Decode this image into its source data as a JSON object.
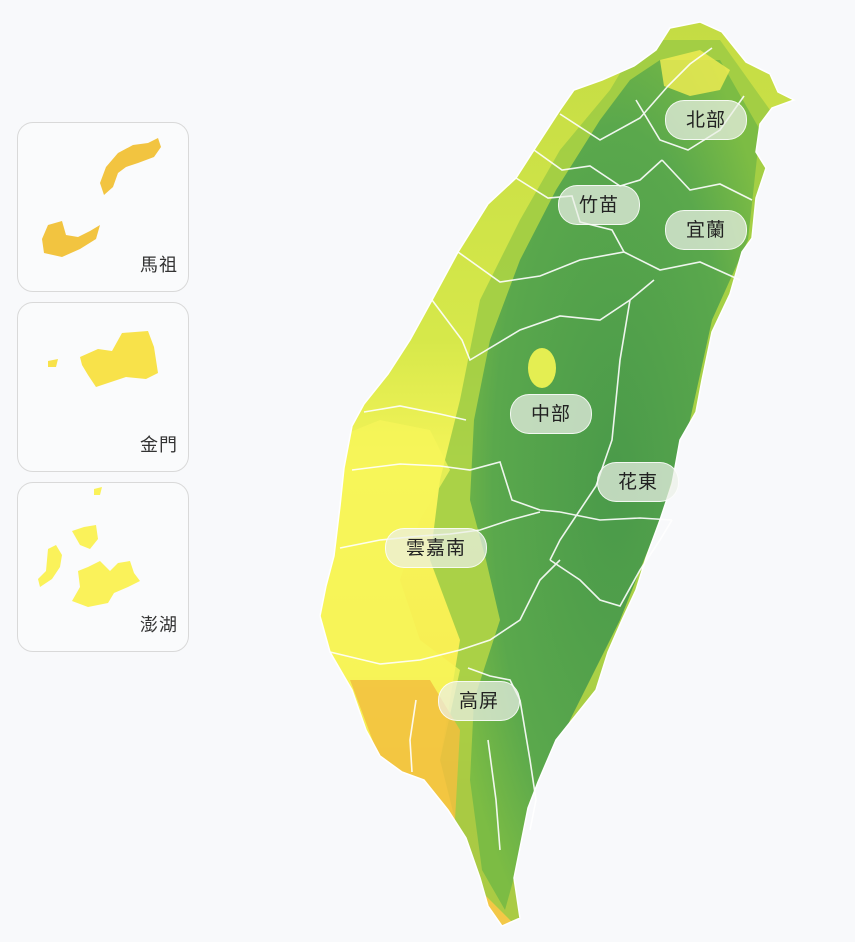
{
  "islands": {
    "matsu": {
      "label": "馬祖",
      "color": "#f2c440"
    },
    "kinmen": {
      "label": "金門",
      "color": "#f8e24a"
    },
    "penghu": {
      "label": "澎湖",
      "color": "#faf25a"
    }
  },
  "regions": {
    "north": "北部",
    "zhumiao": "竹苗",
    "yilan": "宜蘭",
    "central": "中部",
    "huadong": "花東",
    "yunjianan": "雲嘉南",
    "gaoping": "高屏"
  },
  "colors": {
    "mountain": "#4e9f4c",
    "foothill": "#8cc440",
    "plain_north": "#c4dc44",
    "plain_west": "#f7f55a",
    "plain_south": "#f2c03e"
  }
}
